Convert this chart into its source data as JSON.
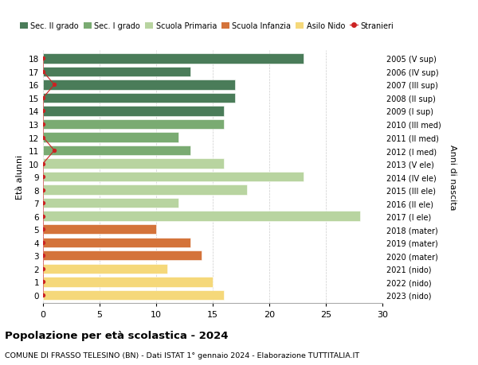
{
  "ages": [
    18,
    17,
    16,
    15,
    14,
    13,
    12,
    11,
    10,
    9,
    8,
    7,
    6,
    5,
    4,
    3,
    2,
    1,
    0
  ],
  "years_labels": [
    "2005 (V sup)",
    "2006 (IV sup)",
    "2007 (III sup)",
    "2008 (II sup)",
    "2009 (I sup)",
    "2010 (III med)",
    "2011 (II med)",
    "2012 (I med)",
    "2013 (V ele)",
    "2014 (IV ele)",
    "2015 (III ele)",
    "2016 (II ele)",
    "2017 (I ele)",
    "2018 (mater)",
    "2019 (mater)",
    "2020 (mater)",
    "2021 (nido)",
    "2022 (nido)",
    "2023 (nido)"
  ],
  "values": [
    23,
    13,
    17,
    17,
    16,
    16,
    12,
    13,
    16,
    23,
    18,
    12,
    28,
    10,
    13,
    14,
    11,
    15,
    16
  ],
  "bar_colors": [
    "#4a7c59",
    "#4a7c59",
    "#4a7c59",
    "#4a7c59",
    "#4a7c59",
    "#7aab72",
    "#7aab72",
    "#7aab72",
    "#b8d4a0",
    "#b8d4a0",
    "#b8d4a0",
    "#b8d4a0",
    "#b8d4a0",
    "#d4733a",
    "#d4733a",
    "#d4733a",
    "#f5d87a",
    "#f5d87a",
    "#f5d87a"
  ],
  "stranieri_x": [
    0,
    0,
    1,
    0,
    0,
    0,
    0,
    1,
    0,
    0,
    0,
    0,
    0,
    0,
    0,
    0,
    0,
    0,
    0
  ],
  "stranieri_y": [
    18,
    17,
    16,
    15,
    14,
    13,
    12,
    11,
    10,
    9,
    8,
    7,
    6,
    5,
    4,
    3,
    2,
    1,
    0
  ],
  "legend_labels": [
    "Sec. II grado",
    "Sec. I grado",
    "Scuola Primaria",
    "Scuola Infanzia",
    "Asilo Nido",
    "Stranieri"
  ],
  "legend_colors": [
    "#4a7c59",
    "#7aab72",
    "#b8d4a0",
    "#d4733a",
    "#f5d87a",
    "#cc2222"
  ],
  "title": "Popolazione per età scolastica - 2024",
  "subtitle": "COMUNE DI FRASSO TELESINO (BN) - Dati ISTAT 1° gennaio 2024 - Elaborazione TUTTITALIA.IT",
  "ylabel_left": "Età alunni",
  "ylabel_right": "Anni di nascita",
  "xlim": [
    0,
    30
  ],
  "background_color": "#ffffff",
  "bar_height": 0.75,
  "grid_color": "#cccccc"
}
